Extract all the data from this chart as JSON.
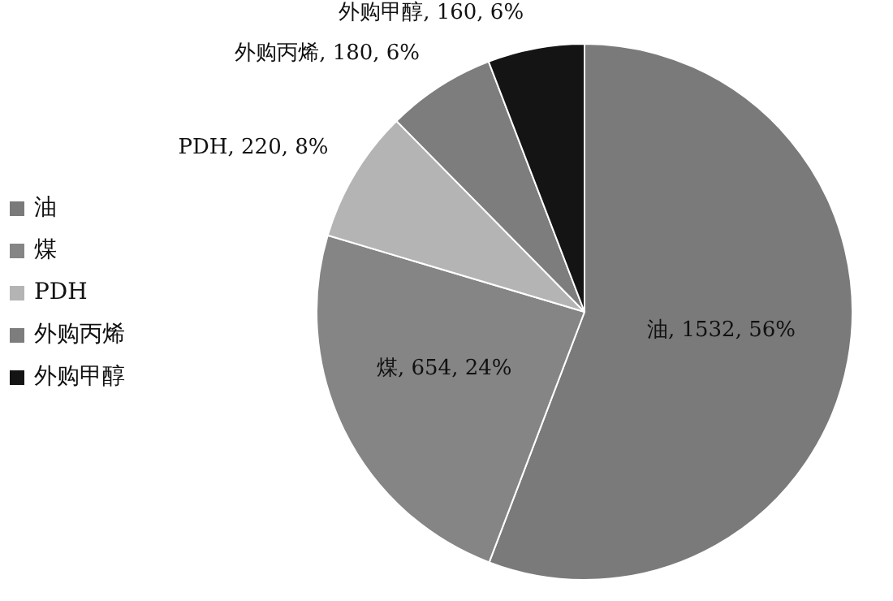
{
  "chart_data": {
    "type": "pie",
    "categories": [
      "油",
      "煤",
      "PDH",
      "外购丙烯",
      "外购甲醇"
    ],
    "values": [
      1532,
      654,
      220,
      180,
      160
    ],
    "colors": [
      "#7a7a7a",
      "#858585",
      "#b4b4b4",
      "#7d7d7d",
      "#141414"
    ],
    "value_labels": [
      "油, 1532, 56%",
      "煤, 654, 24%",
      "PDH, 220, 8%",
      "外购丙烯, 180, 6%",
      "外购甲醇, 160, 6%"
    ],
    "legend": "left"
  }
}
